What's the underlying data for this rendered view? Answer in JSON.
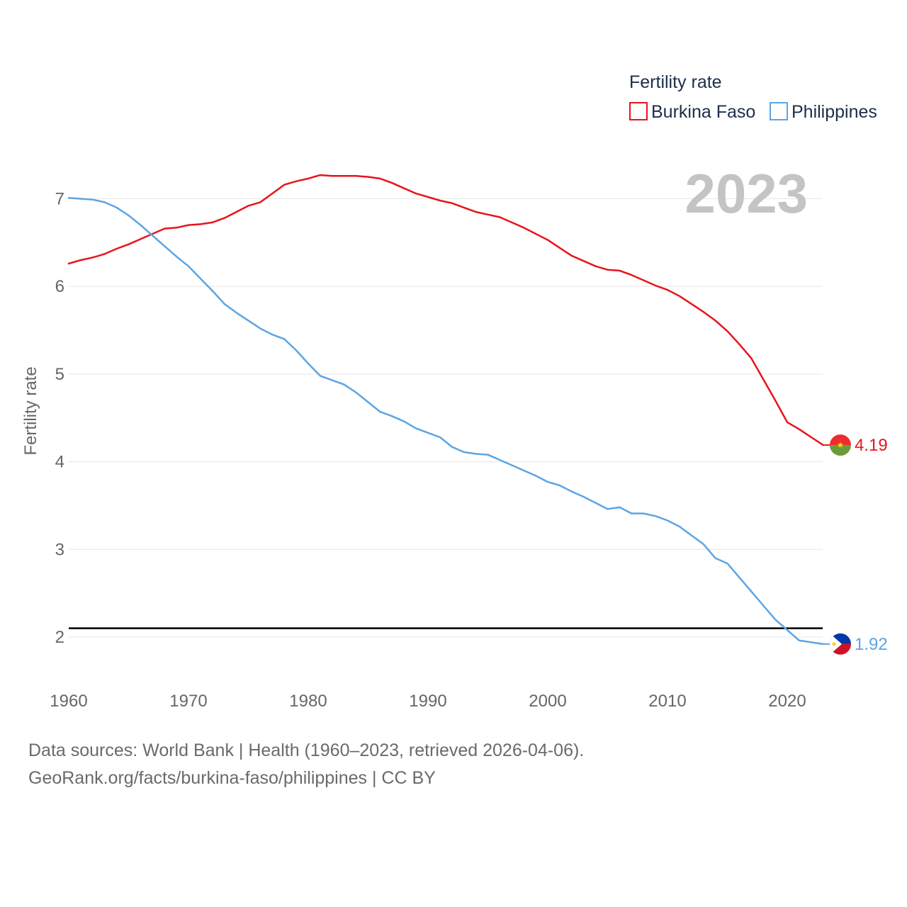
{
  "chart_data": {
    "type": "line",
    "legend_title": "Fertility rate",
    "year_label": "2023",
    "ylabel": "Fertility rate",
    "xlim": [
      1960,
      2023
    ],
    "ylim": [
      1.5,
      7.6
    ],
    "x_ticks": [
      "1960",
      "1970",
      "1980",
      "1990",
      "2000",
      "2010",
      "2020"
    ],
    "y_ticks": [
      "2",
      "3",
      "4",
      "5",
      "6",
      "7"
    ],
    "reference_line": 2.1,
    "x": [
      1960,
      1961,
      1962,
      1963,
      1964,
      1965,
      1966,
      1967,
      1968,
      1969,
      1970,
      1971,
      1972,
      1973,
      1974,
      1975,
      1976,
      1977,
      1978,
      1979,
      1980,
      1981,
      1982,
      1983,
      1984,
      1985,
      1986,
      1987,
      1988,
      1989,
      1990,
      1991,
      1992,
      1993,
      1994,
      1995,
      1996,
      1997,
      1998,
      1999,
      2000,
      2001,
      2002,
      2003,
      2004,
      2005,
      2006,
      2007,
      2008,
      2009,
      2010,
      2011,
      2012,
      2013,
      2014,
      2015,
      2016,
      2017,
      2018,
      2019,
      2020,
      2021,
      2022,
      2023
    ],
    "series": [
      {
        "name": "Burkina Faso",
        "color": "#e8141b",
        "end_label": "4.19",
        "values": [
          6.26,
          6.3,
          6.33,
          6.37,
          6.43,
          6.48,
          6.54,
          6.6,
          6.66,
          6.67,
          6.7,
          6.71,
          6.73,
          6.78,
          6.85,
          6.92,
          6.96,
          7.06,
          7.16,
          7.2,
          7.23,
          7.27,
          7.26,
          7.26,
          7.26,
          7.25,
          7.23,
          7.18,
          7.12,
          7.06,
          7.02,
          6.98,
          6.95,
          6.9,
          6.85,
          6.82,
          6.79,
          6.73,
          6.67,
          6.6,
          6.53,
          6.44,
          6.35,
          6.29,
          6.23,
          6.19,
          6.18,
          6.13,
          6.07,
          6.01,
          5.96,
          5.89,
          5.8,
          5.71,
          5.61,
          5.49,
          5.34,
          5.18,
          4.94,
          4.7,
          4.45,
          4.37,
          4.28,
          4.19
        ]
      },
      {
        "name": "Philippines",
        "color": "#5ca5e3",
        "end_label": "1.92",
        "values": [
          7.01,
          7.0,
          6.99,
          6.96,
          6.9,
          6.81,
          6.7,
          6.58,
          6.46,
          6.34,
          6.23,
          6.09,
          5.95,
          5.8,
          5.7,
          5.61,
          5.52,
          5.45,
          5.4,
          5.27,
          5.12,
          4.98,
          4.93,
          4.88,
          4.79,
          4.68,
          4.57,
          4.52,
          4.46,
          4.38,
          4.33,
          4.28,
          4.17,
          4.11,
          4.09,
          4.08,
          4.02,
          3.96,
          3.9,
          3.84,
          3.77,
          3.73,
          3.66,
          3.6,
          3.53,
          3.46,
          3.48,
          3.41,
          3.41,
          3.38,
          3.33,
          3.26,
          3.16,
          3.06,
          2.9,
          2.84,
          2.68,
          2.52,
          2.36,
          2.2,
          2.08,
          1.96,
          1.94,
          1.92
        ]
      }
    ]
  },
  "footer": {
    "line1": "Data sources: World Bank | Health (1960–2023, retrieved 2026-04-06).",
    "line2": "GeoRank.org/facts/burkina-faso/philippines | CC BY"
  }
}
